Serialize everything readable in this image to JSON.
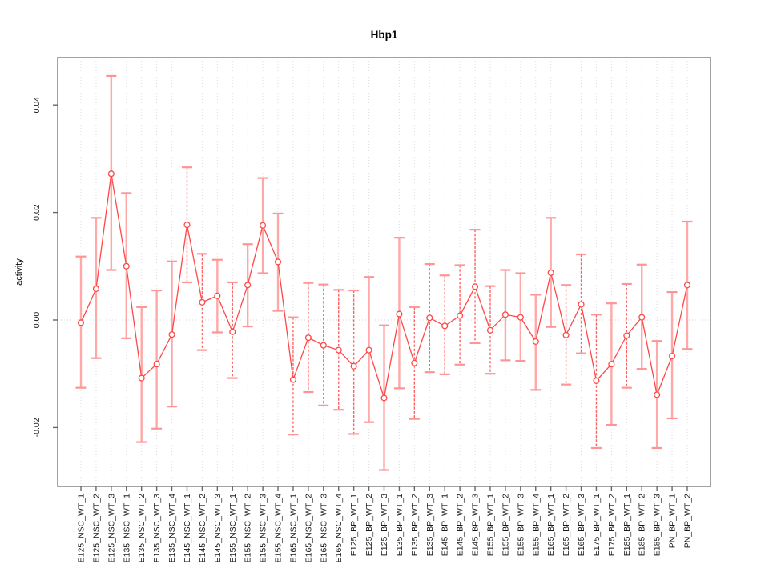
{
  "chart_data": {
    "type": "scatter",
    "subtype": "means-with-error-bars",
    "title": "Hbp1",
    "xlabel": "",
    "ylabel": "activity",
    "legend": "none",
    "grid": "vertical-dotted-per-category-plus-dotted-zero-line",
    "ylim": [
      -0.031,
      0.049
    ],
    "y_ticks": [
      -0.02,
      0.0,
      0.02,
      0.04
    ],
    "y_tick_labels": [
      "-0.02",
      "0.00",
      "0.02",
      "0.04"
    ],
    "categories": [
      "E125_NSC_WT_1",
      "E125_NSC_WT_2",
      "E125_NSC_WT_3",
      "E135_NSC_WT_1",
      "E135_NSC_WT_2",
      "E135_NSC_WT_3",
      "E135_NSC_WT_4",
      "E145_NSC_WT_1",
      "E145_NSC_WT_2",
      "E145_NSC_WT_3",
      "E155_NSC_WT_1",
      "E155_NSC_WT_2",
      "E155_NSC_WT_3",
      "E155_NSC_WT_4",
      "E165_NSC_WT_1",
      "E165_NSC_WT_2",
      "E165_NSC_WT_3",
      "E165_NSC_WT_4",
      "E125_BP_WT_1",
      "E125_BP_WT_2",
      "E125_BP_WT_3",
      "E135_BP_WT_1",
      "E135_BP_WT_2",
      "E135_BP_WT_3",
      "E145_BP_WT_1",
      "E145_BP_WT_2",
      "E145_BP_WT_3",
      "E155_BP_WT_1",
      "E155_BP_WT_2",
      "E155_BP_WT_3",
      "E155_BP_WT_4",
      "E165_BP_WT_1",
      "E165_BP_WT_2",
      "E165_BP_WT_3",
      "E175_BP_WT_1",
      "E175_BP_WT_2",
      "E185_BP_WT_1",
      "E185_BP_WT_2",
      "E185_BP_WT_3",
      "PN_BP_WT_1",
      "PN_BP_WT_2"
    ],
    "series": [
      {
        "name": "activity",
        "means": [
          -0.0005,
          0.0058,
          0.0272,
          0.01,
          -0.0108,
          -0.0082,
          -0.0027,
          0.0177,
          0.0033,
          0.0045,
          -0.0022,
          0.0065,
          0.0176,
          0.0108,
          -0.0111,
          -0.0033,
          -0.0047,
          -0.0056,
          -0.0086,
          -0.0056,
          -0.0145,
          0.0011,
          -0.008,
          0.0004,
          -0.0011,
          0.0008,
          0.0062,
          -0.0019,
          0.001,
          0.0005,
          -0.004,
          0.0088,
          -0.0028,
          0.0029,
          -0.0113,
          -0.0082,
          -0.0029,
          0.0005,
          -0.0139,
          -0.0067,
          0.0065
        ],
        "ci_low": [
          -0.0126,
          -0.0071,
          0.0093,
          -0.0034,
          -0.0227,
          -0.0202,
          -0.0161,
          0.007,
          -0.0056,
          -0.0023,
          -0.0108,
          -0.0012,
          0.0087,
          0.0017,
          -0.0213,
          -0.0134,
          -0.0159,
          -0.0167,
          -0.0212,
          -0.019,
          -0.0279,
          -0.0127,
          -0.0184,
          -0.0097,
          -0.0101,
          -0.0083,
          -0.0043,
          -0.01,
          -0.0075,
          -0.0076,
          -0.013,
          -0.0013,
          -0.012,
          -0.0062,
          -0.0238,
          -0.0195,
          -0.0126,
          -0.0091,
          -0.0238,
          -0.0183,
          -0.0054
        ],
        "ci_high": [
          0.0118,
          0.019,
          0.0454,
          0.0236,
          0.0024,
          0.0055,
          0.0109,
          0.0284,
          0.0123,
          0.0112,
          0.007,
          0.0141,
          0.0264,
          0.0198,
          0.0005,
          0.0069,
          0.0066,
          0.0056,
          0.0055,
          0.008,
          -0.001,
          0.0153,
          0.0024,
          0.0104,
          0.0083,
          0.0102,
          0.0168,
          0.0063,
          0.0093,
          0.0087,
          0.0047,
          0.019,
          0.0065,
          0.0122,
          0.001,
          0.0031,
          0.0067,
          0.0103,
          -0.0039,
          0.0052,
          0.0183
        ]
      }
    ],
    "bar_styles": [
      "solid",
      "solid",
      "solid",
      "solid",
      "solid",
      "solid",
      "solid",
      "dashed",
      "dashed",
      "solid",
      "dashed",
      "solid",
      "solid",
      "solid",
      "dashed",
      "dashed",
      "dashed",
      "dashed",
      "dashed",
      "solid",
      "solid",
      "solid",
      "dashed",
      "dashed",
      "dashed",
      "dashed",
      "dashed",
      "dashed",
      "solid",
      "solid",
      "solid",
      "solid",
      "dashed",
      "dashed",
      "dashed",
      "solid",
      "dashed",
      "solid",
      "solid",
      "solid",
      "solid"
    ],
    "colors": {
      "point": "#ff4747",
      "line": "#ff4747",
      "error_bar_solid": "#ffa8a8",
      "error_bar_dashed": "#ff6060",
      "error_bar_cap": "#ff9494",
      "gridline": "#dcdcdc",
      "zero_line": "#d4d4d4",
      "frame": "#8c8c8c",
      "tick": "#666666",
      "text": "#000000",
      "background": "#ffffff"
    }
  }
}
